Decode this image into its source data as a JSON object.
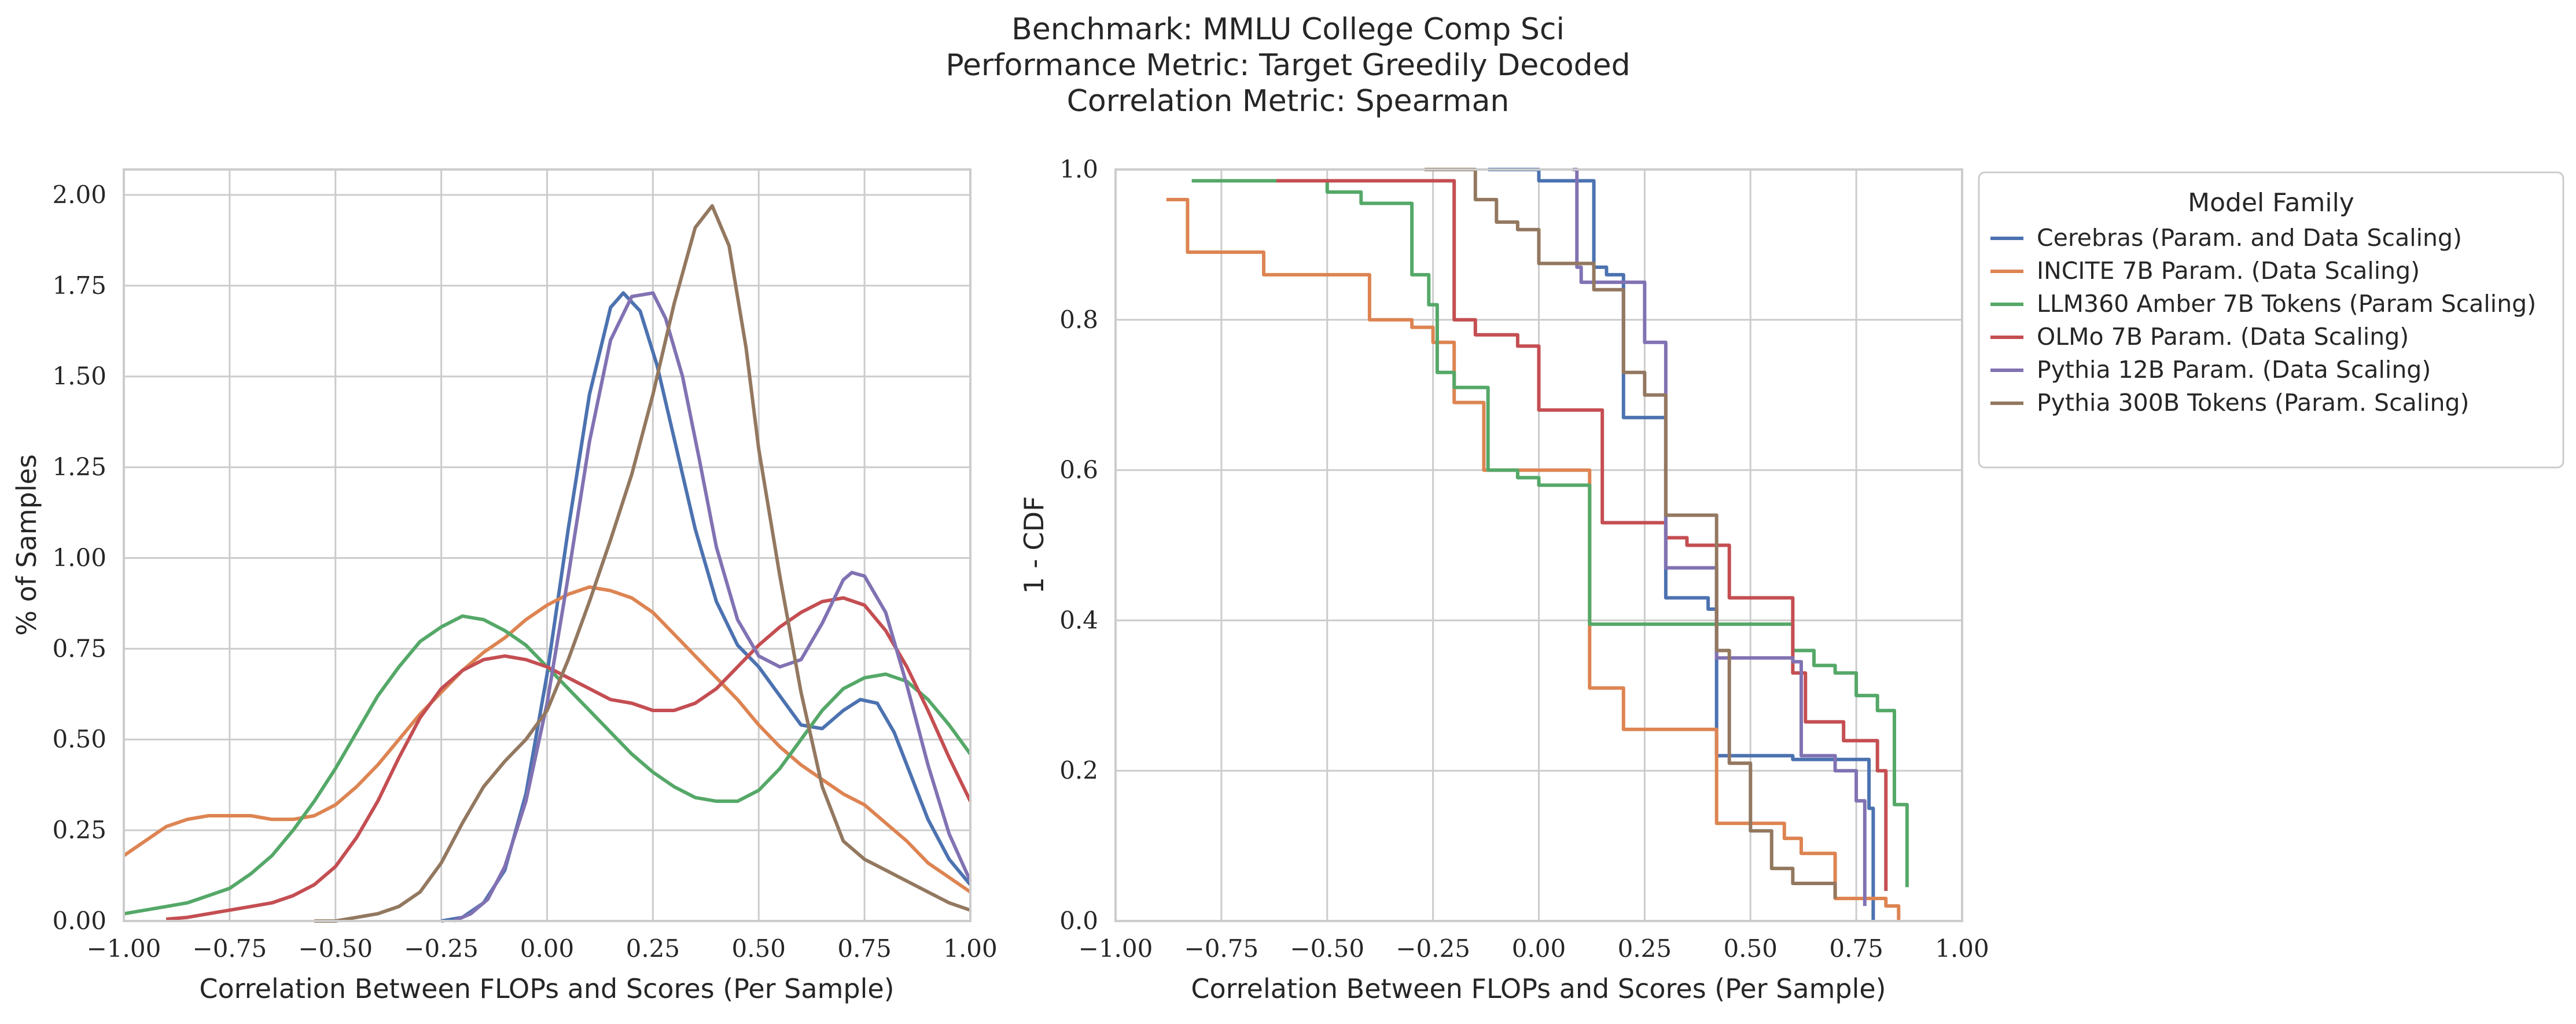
{
  "title_lines": [
    "Benchmark: MMLU College Comp Sci",
    "Performance Metric: Target Greedily Decoded",
    "Correlation Metric: Spearman"
  ],
  "colors": {
    "Cerebras": "#4c72b0",
    "INCITE": "#dd8452",
    "LLM360": "#55a868",
    "OLMo": "#c44e52",
    "Pythia12B": "#8172b3",
    "Pythia300B": "#937860"
  },
  "chart_data": [
    {
      "type": "line",
      "subtype": "kde",
      "xlabel": "Correlation Between FLOPs and Scores (Per Sample)",
      "ylabel": "% of Samples",
      "xlim": [
        -1.0,
        1.0
      ],
      "ylim": [
        0.0,
        2.07
      ],
      "xticks": [
        "−1.00",
        "−0.75",
        "−0.50",
        "−0.25",
        "0.00",
        "0.25",
        "0.50",
        "0.75",
        "1.00"
      ],
      "xtick_values": [
        -1.0,
        -0.75,
        -0.5,
        -0.25,
        0.0,
        0.25,
        0.5,
        0.75,
        1.0
      ],
      "yticks": [
        "0.00",
        "0.25",
        "0.50",
        "0.75",
        "1.00",
        "1.25",
        "1.50",
        "1.75",
        "2.00"
      ],
      "ytick_values": [
        0.0,
        0.25,
        0.5,
        0.75,
        1.0,
        1.25,
        1.5,
        1.75,
        2.0
      ],
      "grid": true,
      "series": [
        {
          "key": "Cerebras",
          "x": [
            -0.25,
            -0.2,
            -0.15,
            -0.1,
            -0.05,
            0.0,
            0.05,
            0.1,
            0.15,
            0.18,
            0.22,
            0.26,
            0.3,
            0.35,
            0.4,
            0.45,
            0.5,
            0.55,
            0.6,
            0.65,
            0.7,
            0.74,
            0.78,
            0.82,
            0.86,
            0.9,
            0.95,
            1.0
          ],
          "y": [
            0.0,
            0.01,
            0.05,
            0.14,
            0.35,
            0.68,
            1.08,
            1.45,
            1.69,
            1.73,
            1.68,
            1.53,
            1.33,
            1.08,
            0.88,
            0.76,
            0.7,
            0.62,
            0.54,
            0.53,
            0.58,
            0.61,
            0.6,
            0.52,
            0.4,
            0.28,
            0.17,
            0.1
          ]
        },
        {
          "key": "INCITE",
          "x": [
            -1.0,
            -0.95,
            -0.9,
            -0.85,
            -0.8,
            -0.75,
            -0.7,
            -0.65,
            -0.6,
            -0.55,
            -0.5,
            -0.45,
            -0.4,
            -0.35,
            -0.3,
            -0.25,
            -0.2,
            -0.15,
            -0.1,
            -0.05,
            0.0,
            0.05,
            0.1,
            0.15,
            0.2,
            0.25,
            0.3,
            0.35,
            0.4,
            0.45,
            0.5,
            0.55,
            0.6,
            0.65,
            0.7,
            0.75,
            0.8,
            0.85,
            0.9,
            0.95,
            1.0
          ],
          "y": [
            0.18,
            0.22,
            0.26,
            0.28,
            0.29,
            0.29,
            0.29,
            0.28,
            0.28,
            0.29,
            0.32,
            0.37,
            0.43,
            0.5,
            0.57,
            0.63,
            0.69,
            0.74,
            0.78,
            0.83,
            0.87,
            0.9,
            0.92,
            0.91,
            0.89,
            0.85,
            0.79,
            0.73,
            0.67,
            0.61,
            0.54,
            0.48,
            0.43,
            0.39,
            0.35,
            0.32,
            0.27,
            0.22,
            0.16,
            0.12,
            0.08
          ]
        },
        {
          "key": "LLM360",
          "x": [
            -1.0,
            -0.95,
            -0.9,
            -0.85,
            -0.8,
            -0.75,
            -0.7,
            -0.65,
            -0.6,
            -0.55,
            -0.5,
            -0.45,
            -0.4,
            -0.35,
            -0.3,
            -0.25,
            -0.2,
            -0.15,
            -0.1,
            -0.05,
            0.0,
            0.05,
            0.1,
            0.15,
            0.2,
            0.25,
            0.3,
            0.35,
            0.4,
            0.45,
            0.5,
            0.55,
            0.6,
            0.65,
            0.7,
            0.75,
            0.8,
            0.85,
            0.9,
            0.95,
            1.0
          ],
          "y": [
            0.02,
            0.03,
            0.04,
            0.05,
            0.07,
            0.09,
            0.13,
            0.18,
            0.25,
            0.33,
            0.42,
            0.52,
            0.62,
            0.7,
            0.77,
            0.81,
            0.84,
            0.83,
            0.8,
            0.76,
            0.7,
            0.64,
            0.58,
            0.52,
            0.46,
            0.41,
            0.37,
            0.34,
            0.33,
            0.33,
            0.36,
            0.42,
            0.5,
            0.58,
            0.64,
            0.67,
            0.68,
            0.66,
            0.61,
            0.54,
            0.46
          ]
        },
        {
          "key": "OLMo",
          "x": [
            -0.9,
            -0.85,
            -0.8,
            -0.75,
            -0.7,
            -0.65,
            -0.6,
            -0.55,
            -0.5,
            -0.45,
            -0.4,
            -0.35,
            -0.3,
            -0.25,
            -0.2,
            -0.15,
            -0.1,
            -0.05,
            0.0,
            0.05,
            0.1,
            0.15,
            0.2,
            0.25,
            0.3,
            0.35,
            0.4,
            0.45,
            0.5,
            0.55,
            0.6,
            0.65,
            0.7,
            0.75,
            0.8,
            0.85,
            0.9,
            0.95,
            1.0
          ],
          "y": [
            0.005,
            0.01,
            0.02,
            0.03,
            0.04,
            0.05,
            0.07,
            0.1,
            0.15,
            0.23,
            0.33,
            0.45,
            0.56,
            0.64,
            0.69,
            0.72,
            0.73,
            0.72,
            0.7,
            0.67,
            0.64,
            0.61,
            0.6,
            0.58,
            0.58,
            0.6,
            0.64,
            0.7,
            0.76,
            0.81,
            0.85,
            0.88,
            0.89,
            0.87,
            0.8,
            0.7,
            0.58,
            0.45,
            0.33
          ]
        },
        {
          "key": "Pythia12B",
          "x": [
            -0.22,
            -0.18,
            -0.14,
            -0.1,
            -0.05,
            0.0,
            0.05,
            0.1,
            0.15,
            0.2,
            0.25,
            0.28,
            0.32,
            0.36,
            0.4,
            0.45,
            0.5,
            0.55,
            0.6,
            0.65,
            0.7,
            0.72,
            0.75,
            0.8,
            0.85,
            0.9,
            0.95,
            1.0
          ],
          "y": [
            0.0,
            0.02,
            0.06,
            0.15,
            0.33,
            0.6,
            0.95,
            1.32,
            1.6,
            1.72,
            1.73,
            1.66,
            1.5,
            1.27,
            1.03,
            0.83,
            0.73,
            0.7,
            0.72,
            0.82,
            0.94,
            0.96,
            0.95,
            0.85,
            0.65,
            0.43,
            0.24,
            0.11
          ]
        },
        {
          "key": "Pythia300B",
          "x": [
            -0.55,
            -0.5,
            -0.45,
            -0.4,
            -0.35,
            -0.3,
            -0.25,
            -0.2,
            -0.15,
            -0.1,
            -0.05,
            0.0,
            0.05,
            0.1,
            0.15,
            0.2,
            0.25,
            0.3,
            0.35,
            0.39,
            0.43,
            0.47,
            0.5,
            0.55,
            0.6,
            0.65,
            0.7,
            0.75,
            0.8,
            0.85,
            0.9,
            0.95,
            1.0
          ],
          "y": [
            0.0,
            0.0,
            0.01,
            0.02,
            0.04,
            0.08,
            0.16,
            0.27,
            0.37,
            0.44,
            0.5,
            0.58,
            0.72,
            0.88,
            1.05,
            1.23,
            1.45,
            1.7,
            1.91,
            1.97,
            1.86,
            1.58,
            1.3,
            0.95,
            0.63,
            0.37,
            0.22,
            0.17,
            0.14,
            0.11,
            0.08,
            0.05,
            0.03
          ]
        }
      ]
    },
    {
      "type": "line",
      "subtype": "survival-step",
      "xlabel": "Correlation Between FLOPs and Scores (Per Sample)",
      "ylabel": "1 - CDF",
      "xlim": [
        -1.0,
        1.0
      ],
      "ylim": [
        0.0,
        1.0
      ],
      "xticks": [
        "−1.00",
        "−0.75",
        "−0.50",
        "−0.25",
        "0.00",
        "0.25",
        "0.50",
        "0.75",
        "1.00"
      ],
      "xtick_values": [
        -1.0,
        -0.75,
        -0.5,
        -0.25,
        0.0,
        0.25,
        0.5,
        0.75,
        1.0
      ],
      "yticks": [
        "0.0",
        "0.2",
        "0.4",
        "0.6",
        "0.8",
        "1.0"
      ],
      "ytick_values": [
        0.0,
        0.2,
        0.4,
        0.6,
        0.8,
        1.0
      ],
      "grid": true,
      "legend_title": "Model Family",
      "legend_position": "outside-right",
      "series": [
        {
          "key": "Cerebras",
          "name": "Cerebras (Param. and Data Scaling)",
          "x": [
            -0.12,
            0.0,
            0.13,
            0.16,
            0.2,
            0.3,
            0.4,
            0.42,
            0.6,
            0.78,
            0.79
          ],
          "y": [
            1.0,
            0.985,
            0.87,
            0.86,
            0.67,
            0.43,
            0.415,
            0.22,
            0.215,
            0.15,
            0.0
          ]
        },
        {
          "key": "INCITE",
          "name": "INCITE 7B Param. (Data Scaling)",
          "x": [
            -0.88,
            -0.83,
            -0.65,
            -0.4,
            -0.3,
            -0.25,
            -0.2,
            -0.13,
            0.0,
            0.12,
            0.2,
            0.4,
            0.42,
            0.58,
            0.62,
            0.7,
            0.82,
            0.85
          ],
          "y": [
            0.96,
            0.89,
            0.86,
            0.8,
            0.79,
            0.77,
            0.69,
            0.6,
            0.6,
            0.31,
            0.255,
            0.255,
            0.13,
            0.11,
            0.09,
            0.03,
            0.02,
            0.0
          ]
        },
        {
          "key": "LLM360",
          "name": "LLM360 Amber 7B Tokens (Param Scaling)",
          "x": [
            -0.82,
            -0.6,
            -0.5,
            -0.42,
            -0.3,
            -0.26,
            -0.24,
            -0.2,
            -0.12,
            -0.05,
            0.0,
            0.12,
            0.6,
            0.65,
            0.7,
            0.75,
            0.8,
            0.84,
            0.87
          ],
          "y": [
            0.985,
            0.985,
            0.97,
            0.955,
            0.86,
            0.82,
            0.73,
            0.71,
            0.6,
            0.59,
            0.58,
            0.395,
            0.36,
            0.34,
            0.33,
            0.3,
            0.28,
            0.155,
            0.045
          ]
        },
        {
          "key": "OLMo",
          "name": "OLMo 7B Param. (Data Scaling)",
          "x": [
            -0.62,
            -0.25,
            -0.2,
            -0.15,
            -0.05,
            0.0,
            0.15,
            0.3,
            0.35,
            0.45,
            0.6,
            0.63,
            0.72,
            0.8,
            0.82
          ],
          "y": [
            0.985,
            0.985,
            0.8,
            0.78,
            0.765,
            0.68,
            0.53,
            0.51,
            0.5,
            0.43,
            0.33,
            0.265,
            0.24,
            0.2,
            0.04
          ]
        },
        {
          "key": "Pythia12B",
          "name": "Pythia 12B Param. (Data Scaling)",
          "x": [
            0.08,
            0.09,
            0.1,
            0.25,
            0.3,
            0.4,
            0.42,
            0.6,
            0.62,
            0.7,
            0.75,
            0.77
          ],
          "y": [
            1.0,
            0.87,
            0.85,
            0.77,
            0.47,
            0.47,
            0.35,
            0.345,
            0.22,
            0.2,
            0.16,
            0.02
          ]
        },
        {
          "key": "Pythia300B",
          "name": "Pythia 300B Tokens (Param. Scaling)",
          "x": [
            -0.27,
            -0.15,
            -0.1,
            -0.05,
            0.0,
            0.13,
            0.2,
            0.25,
            0.3,
            0.42,
            0.45,
            0.5,
            0.55,
            0.6,
            0.7
          ],
          "y": [
            1.0,
            0.96,
            0.93,
            0.92,
            0.875,
            0.84,
            0.73,
            0.7,
            0.54,
            0.36,
            0.21,
            0.12,
            0.07,
            0.05,
            0.03
          ]
        }
      ]
    }
  ]
}
